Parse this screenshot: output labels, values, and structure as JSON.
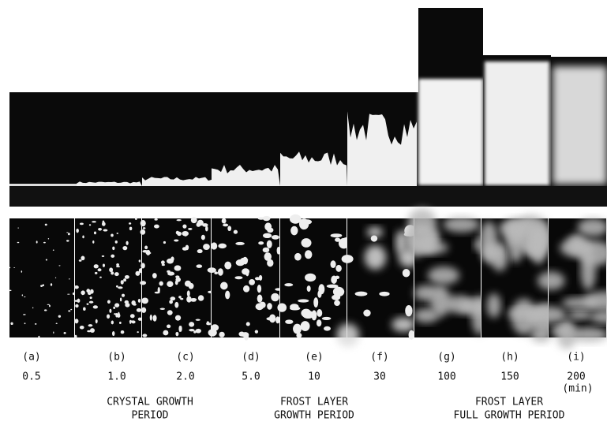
{
  "panels": [
    {
      "label": "(a)",
      "time": "0.5"
    },
    {
      "label": "(b)",
      "time": "1.0"
    },
    {
      "label": "(c)",
      "time": "2.0"
    },
    {
      "label": "(d)",
      "time": "5.0"
    },
    {
      "label": "(e)",
      "time": "10"
    },
    {
      "label": "(f)",
      "time": "30"
    },
    {
      "label": "(g)",
      "time": "100"
    },
    {
      "label": "(h)",
      "time": "150"
    },
    {
      "label": "(i)",
      "time": "200"
    }
  ],
  "unit": "(min)",
  "periods": [
    {
      "lines": [
        "CRYSTAL GROWTH",
        "PERIOD"
      ]
    },
    {
      "lines": [
        "FROST LAYER",
        "GROWTH PERIOD"
      ]
    },
    {
      "lines": [
        "FROST LAYER",
        "FULL GROWTH PERIOD"
      ]
    }
  ]
}
